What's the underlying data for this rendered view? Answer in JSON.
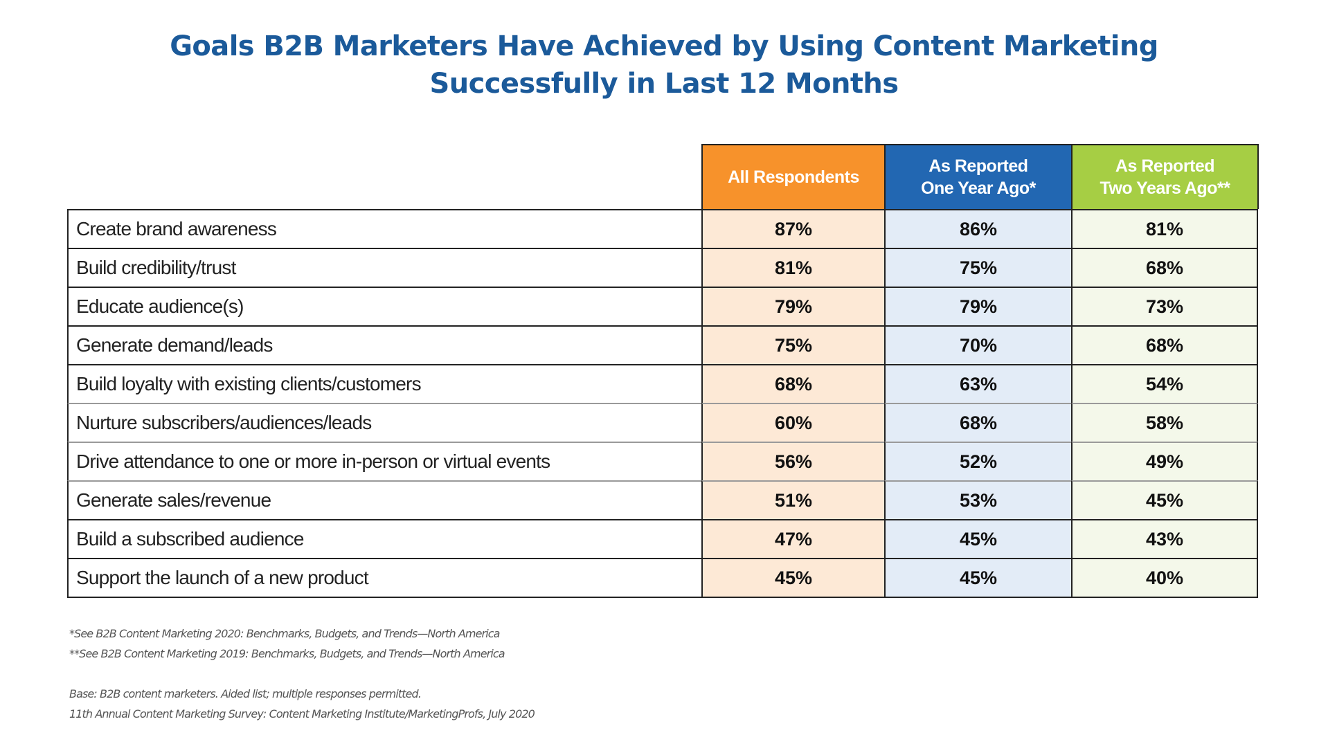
{
  "chart_data": {
    "type": "table",
    "title": "Goals B2B Marketers Have Achieved by Using Content Marketing Successfully in Last 12 Months",
    "title_lines": [
      "Goals B2B Marketers Have Achieved by Using Content Marketing",
      "Successfully in Last 12 Months"
    ],
    "columns": [
      {
        "lines": [
          "All Respondents"
        ],
        "header_color": "#F7922B",
        "cell_color": "#FDE9D6"
      },
      {
        "lines": [
          "As Reported",
          "One Year Ago*"
        ],
        "header_color": "#2267B2",
        "cell_color": "#E3ECF7"
      },
      {
        "lines": [
          "As Reported",
          "Two Years Ago**"
        ],
        "header_color": "#A6CE44",
        "cell_color": "#F4F8EA"
      }
    ],
    "series": [
      {
        "name": "All Respondents",
        "values": [
          87,
          81,
          79,
          75,
          68,
          60,
          56,
          51,
          47,
          45
        ]
      },
      {
        "name": "As Reported One Year Ago*",
        "values": [
          86,
          75,
          79,
          70,
          63,
          68,
          52,
          53,
          45,
          45
        ]
      },
      {
        "name": "As Reported Two Years Ago**",
        "values": [
          81,
          68,
          73,
          68,
          54,
          58,
          49,
          45,
          43,
          40
        ]
      }
    ],
    "rows": [
      {
        "label": "Create brand awareness",
        "cells": [
          "87%",
          "86%",
          "81%"
        ]
      },
      {
        "label": "Build credibility/trust",
        "cells": [
          "81%",
          "75%",
          "68%"
        ]
      },
      {
        "label": "Educate audience(s)",
        "cells": [
          "79%",
          "79%",
          "73%"
        ]
      },
      {
        "label": "Generate demand/leads",
        "cells": [
          "75%",
          "70%",
          "68%"
        ]
      },
      {
        "label": "Build loyalty with existing clients/customers",
        "cells": [
          "68%",
          "63%",
          "54%"
        ]
      },
      {
        "label": "Nurture subscribers/audiences/leads",
        "cells": [
          "60%",
          "68%",
          "58%"
        ]
      },
      {
        "label": "Drive attendance to one or more in-person or virtual events",
        "cells": [
          "56%",
          "52%",
          "49%"
        ]
      },
      {
        "label": "Generate sales/revenue",
        "cells": [
          "51%",
          "53%",
          "45%"
        ]
      },
      {
        "label": "Build a subscribed audience",
        "cells": [
          "47%",
          "45%",
          "43%"
        ]
      },
      {
        "label": "Support the launch of a new product",
        "cells": [
          "45%",
          "45%",
          "40%"
        ]
      }
    ],
    "unit": "%"
  },
  "footnotes": [
    "*See B2B Content Marketing 2020: Benchmarks, Budgets, and Trends—North America",
    "**See B2B Content Marketing 2019: Benchmarks, Budgets, and Trends—North America"
  ],
  "source": [
    "Base: B2B content marketers. Aided list; multiple responses permitted.",
    "11th Annual Content Marketing Survey: Content Marketing Institute/MarketingProfs, July 2020"
  ]
}
